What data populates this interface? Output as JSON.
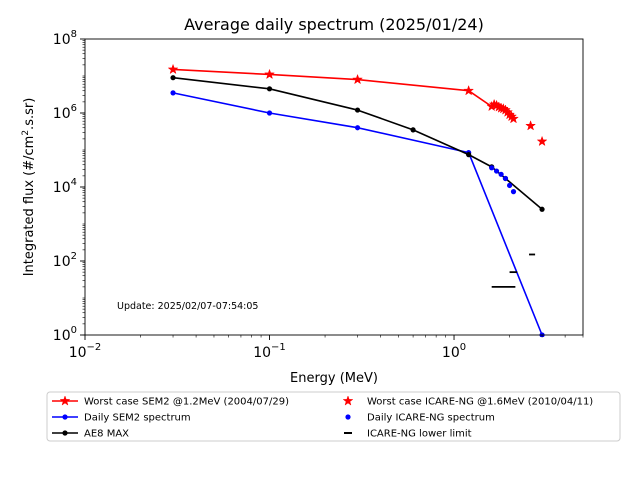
{
  "chart_data": {
    "type": "line",
    "title": "Average daily spectrum (2025/01/24)",
    "xlabel": "Energy (MeV)",
    "ylabel_prefix": "Integrated flux (#/cm",
    "ylabel_sup": "2",
    "ylabel_suffix": ".s.sr)",
    "xscale": "log",
    "yscale": "log",
    "xlim": [
      0.01,
      5
    ],
    "ylim": [
      1,
      100000000
    ],
    "x_ticks": [
      {
        "value": 0.01,
        "base": "10",
        "exp": "−2"
      },
      {
        "value": 0.1,
        "base": "10",
        "exp": "−1"
      },
      {
        "value": 1,
        "base": "10",
        "exp": "0"
      }
    ],
    "y_ticks": [
      {
        "value": 1,
        "base": "10",
        "exp": "0"
      },
      {
        "value": 100,
        "base": "10",
        "exp": "2"
      },
      {
        "value": 10000,
        "base": "10",
        "exp": "4"
      },
      {
        "value": 1000000,
        "base": "10",
        "exp": "6"
      },
      {
        "value": 100000000,
        "base": "10",
        "exp": "8"
      }
    ],
    "annotation": "Update: 2025/02/07-07:54:05",
    "grid": false,
    "legend_position": "bottom",
    "series": [
      {
        "name": "Worst case SEM2 @1.2MeV (2004/07/29)",
        "color": "#ff0000",
        "style": "line",
        "marker": "star",
        "x": [
          0.03,
          0.1,
          0.3,
          1.2,
          1.6,
          1.65,
          1.7,
          1.75,
          1.8,
          1.85,
          1.9,
          1.95,
          2.0,
          2.05,
          2.1
        ],
        "y": [
          15000000,
          11000000,
          8000000,
          4000000,
          1500000,
          1700000,
          1600000,
          1450000,
          1350000,
          1300000,
          1200000,
          1050000,
          900000,
          800000,
          700000
        ]
      },
      {
        "name": "Daily SEM2 spectrum",
        "color": "#0000ff",
        "style": "line",
        "marker": "dot",
        "x": [
          0.03,
          0.1,
          0.3,
          1.2,
          3.0
        ],
        "y": [
          3500000,
          1000000,
          400000,
          85000,
          1
        ]
      },
      {
        "name": "AE8 MAX",
        "color": "#000000",
        "style": "line",
        "marker": "dot",
        "x": [
          0.03,
          0.1,
          0.3,
          0.6,
          1.2,
          1.6,
          1.9,
          3.0
        ],
        "y": [
          9000000,
          4500000,
          1200000,
          350000,
          75000,
          35000,
          17000,
          2500
        ]
      },
      {
        "name": "Worst case ICARE-NG @1.6MeV (2010/04/11)",
        "color": "#ff0000",
        "style": "scatter",
        "marker": "star",
        "x": [
          2.6,
          3.0
        ],
        "y": [
          450000,
          170000
        ]
      },
      {
        "name": "Daily ICARE-NG spectrum",
        "color": "#0000ff",
        "style": "scatter",
        "marker": "dot",
        "x": [
          1.6,
          1.7,
          1.8,
          1.9,
          2.0,
          2.1
        ],
        "y": [
          33000,
          27000,
          22000,
          17000,
          11000,
          7500
        ]
      },
      {
        "name": "ICARE-NG lower limit",
        "color": "#000000",
        "style": "hline",
        "marker": "dash",
        "segments": [
          {
            "x1": 1.6,
            "x2": 2.15,
            "y": 20
          },
          {
            "x1": 2.0,
            "x2": 2.2,
            "y": 50
          },
          {
            "x1": 2.55,
            "x2": 2.75,
            "y": 150
          }
        ]
      }
    ]
  }
}
